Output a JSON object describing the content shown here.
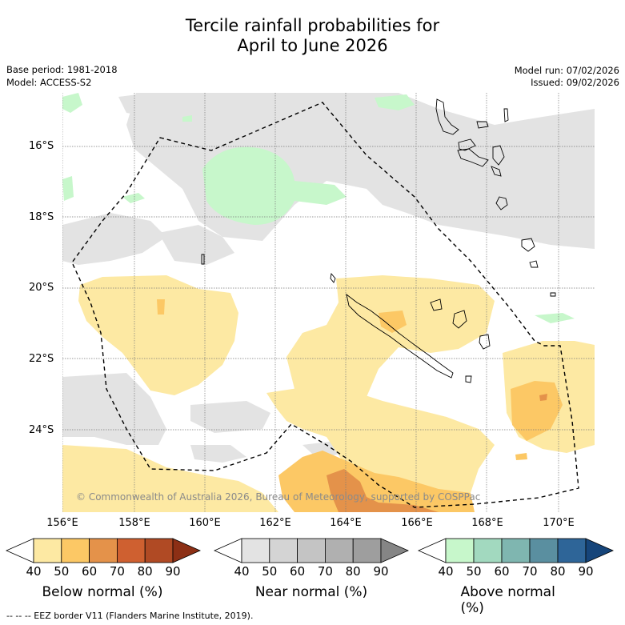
{
  "title": {
    "line1": "Tercile rainfall probabilities for",
    "line2": "April to June 2026"
  },
  "meta": {
    "base_period": "Base period: 1981-2018",
    "model": "Model: ACCESS-S2",
    "model_run": "Model run: 07/02/2026",
    "issued": "Issued: 09/02/2026"
  },
  "map": {
    "lat_labels": [
      "16°S",
      "18°S",
      "20°S",
      "22°S",
      "24°S"
    ],
    "lon_labels": [
      "156°E",
      "158°E",
      "160°E",
      "162°E",
      "164°E",
      "166°E",
      "168°E",
      "170°E"
    ],
    "copyright": "© Commonwealth of Australia 2026, Bureau of Meteorology, supported by COSPPac",
    "colors": {
      "below_50": "#fde9a3",
      "below_60": "#fcc865",
      "below_70": "#e4924a",
      "near_50": "#e3e3e3",
      "above_50": "#c7f7cb"
    }
  },
  "colorbars": [
    {
      "title": "Below normal (%)",
      "ticks": [
        "40",
        "50",
        "60",
        "70",
        "80",
        "90"
      ],
      "colors": [
        "#ffffff",
        "#fde9a3",
        "#fcc865",
        "#e4924a",
        "#cf6030",
        "#b04a24",
        "#8c2f15"
      ]
    },
    {
      "title": "Near normal (%)",
      "ticks": [
        "40",
        "50",
        "60",
        "70",
        "80",
        "90"
      ],
      "colors": [
        "#ffffff",
        "#e3e3e3",
        "#d4d4d4",
        "#c4c4c4",
        "#b0b0b0",
        "#9e9e9e",
        "#858585"
      ]
    },
    {
      "title": "Above normal (%)",
      "ticks": [
        "40",
        "50",
        "60",
        "70",
        "80",
        "90"
      ],
      "colors": [
        "#ffffff",
        "#c7f7cb",
        "#a2d9bf",
        "#7fb6b0",
        "#5a8fa0",
        "#2e6598",
        "#16457a"
      ]
    }
  ],
  "footnote": "--  --  -- EEZ border V11 (Flanders Marine Institute, 2019)."
}
